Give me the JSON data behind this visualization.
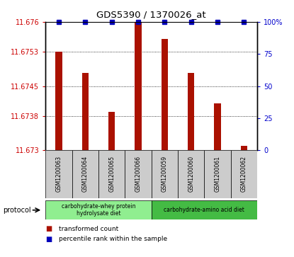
{
  "title": "GDS5390 / 1370026_at",
  "samples": [
    "GSM1200063",
    "GSM1200064",
    "GSM1200065",
    "GSM1200066",
    "GSM1200059",
    "GSM1200060",
    "GSM1200061",
    "GSM1200062"
  ],
  "red_values": [
    11.6753,
    11.6748,
    11.6739,
    11.676,
    11.6756,
    11.6748,
    11.6741,
    11.6731
  ],
  "blue_values": [
    100,
    100,
    100,
    100,
    100,
    100,
    100,
    100
  ],
  "ylim_left": [
    11.673,
    11.676
  ],
  "ylim_right": [
    0,
    100
  ],
  "yticks_left": [
    11.673,
    11.6738,
    11.6745,
    11.6753,
    11.676
  ],
  "yticks_right": [
    0,
    25,
    50,
    75,
    100
  ],
  "groups": [
    {
      "label": "carbohydrate-whey protein\nhydrolysate diet",
      "start": 0,
      "end": 4,
      "color": "#90ee90"
    },
    {
      "label": "carbohydrate-amino acid diet",
      "start": 4,
      "end": 8,
      "color": "#44bb44"
    }
  ],
  "bar_color": "#aa1100",
  "dot_color": "#0000bb",
  "bg_color": "#cccccc",
  "left_tick_color": "#cc0000",
  "right_tick_color": "#0000cc",
  "bar_width": 0.25
}
